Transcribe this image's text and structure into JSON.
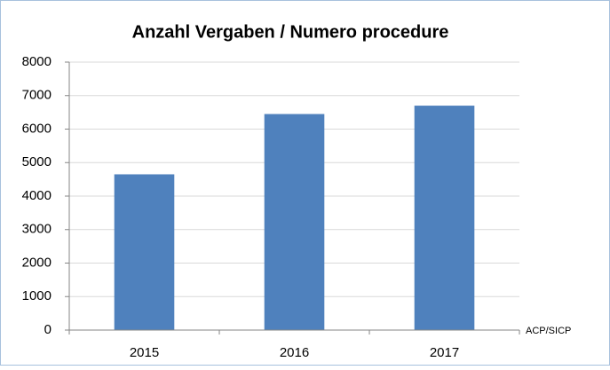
{
  "chart_data": {
    "type": "bar",
    "title": "Anzahl Vergaben / Numero procedure",
    "categories": [
      "2015",
      "2016",
      "2017"
    ],
    "values": [
      4650,
      6450,
      6700
    ],
    "color": "#4f81bd",
    "ylim": [
      0,
      8000
    ],
    "yticks": [
      0,
      1000,
      2000,
      3000,
      4000,
      5000,
      6000,
      7000,
      8000
    ],
    "grid": true,
    "source": "ACP/SICP"
  }
}
